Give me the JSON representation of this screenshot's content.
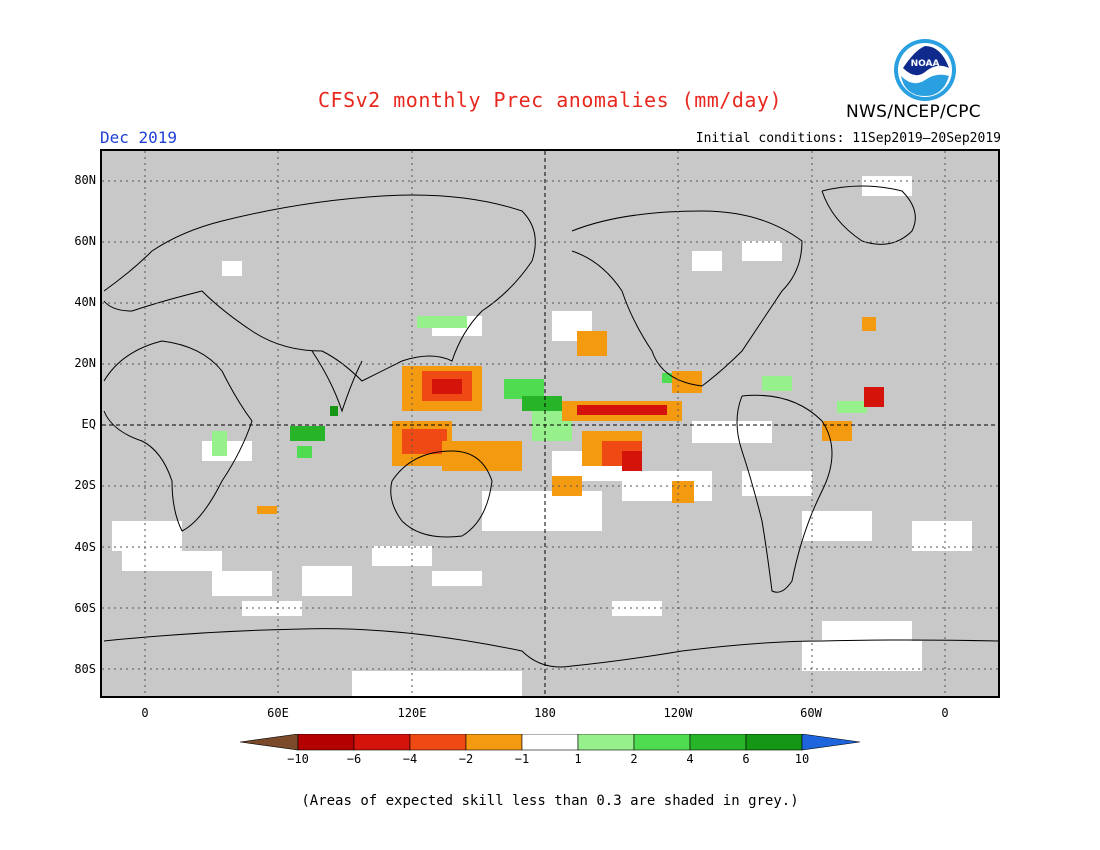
{
  "header": {
    "title": "CFSv2 monthly Prec anomalies (mm/day)",
    "agency": "NWS/NCEP/CPC",
    "logo_text": "NOAA",
    "month": "Dec 2019",
    "initial_conditions": "Initial conditions: 11Sep2019–20Sep2019"
  },
  "map": {
    "projection": "equirectangular",
    "grey_meaning": "skill < 0.3",
    "lat_labels": [
      "80N",
      "60N",
      "40N",
      "20N",
      "EQ",
      "20S",
      "40S",
      "60S",
      "80S"
    ],
    "lon_labels": [
      "0",
      "60E",
      "120E",
      "180",
      "120W",
      "60W",
      "0"
    ]
  },
  "colorbar": {
    "labels": [
      "−10",
      "−6",
      "−4",
      "−2",
      "−1",
      "1",
      "2",
      "4",
      "6",
      "10"
    ],
    "colors": [
      "#7a4a2a",
      "#b40000",
      "#d4140a",
      "#f04a14",
      "#f49a10",
      "#ffffff",
      "#96f08c",
      "#50dc50",
      "#28b428",
      "#159615",
      "#1e64dc"
    ]
  },
  "footer": {
    "note": "(Areas of expected skill less than 0.3 are shaded in grey.)"
  }
}
